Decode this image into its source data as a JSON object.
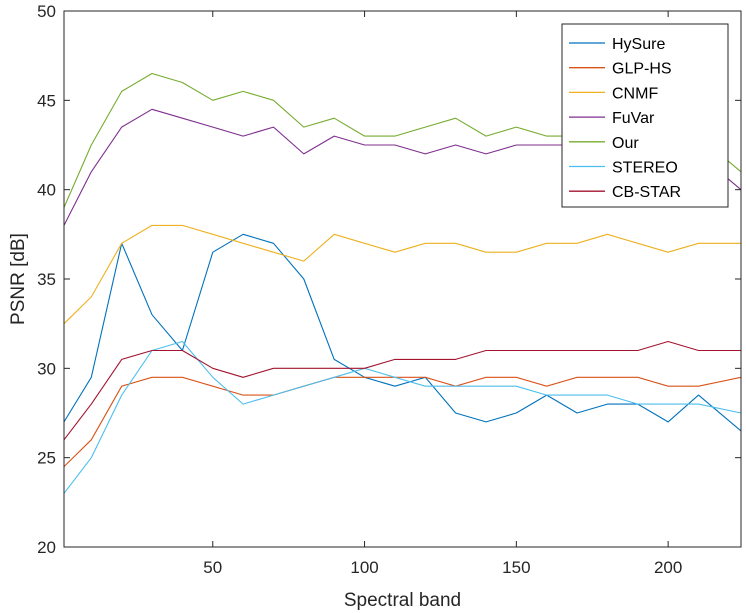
{
  "chart_data": {
    "type": "line",
    "xlabel": "Spectral band",
    "ylabel": "PSNR [dB]",
    "xlim": [
      1,
      224
    ],
    "ylim": [
      20,
      50
    ],
    "xticks": [
      50,
      100,
      150,
      200
    ],
    "yticks": [
      20,
      25,
      30,
      35,
      40,
      45,
      50
    ],
    "legend_position": "top-right",
    "grid": false,
    "x": [
      1,
      10,
      20,
      30,
      40,
      50,
      60,
      70,
      80,
      90,
      100,
      110,
      120,
      130,
      140,
      150,
      160,
      170,
      180,
      190,
      200,
      210,
      224
    ],
    "series": [
      {
        "name": "HySure",
        "color": "#0072BD",
        "values": [
          27.0,
          29.5,
          37.0,
          33.0,
          31.0,
          36.5,
          37.5,
          37.0,
          35.0,
          30.5,
          29.5,
          29.0,
          29.5,
          27.5,
          27.0,
          27.5,
          28.5,
          27.5,
          28.0,
          28.0,
          27.0,
          28.5,
          26.5
        ]
      },
      {
        "name": "GLP-HS",
        "color": "#D95319",
        "values": [
          24.5,
          26.0,
          29.0,
          29.5,
          29.5,
          29.0,
          28.5,
          28.5,
          29.0,
          29.5,
          29.5,
          29.5,
          29.5,
          29.0,
          29.5,
          29.5,
          29.0,
          29.5,
          29.5,
          29.5,
          29.0,
          29.0,
          29.5
        ]
      },
      {
        "name": "CNMF",
        "color": "#EDB120",
        "values": [
          32.5,
          34.0,
          37.0,
          38.0,
          38.0,
          37.5,
          37.0,
          36.5,
          36.0,
          37.5,
          37.0,
          36.5,
          37.0,
          37.0,
          36.5,
          36.5,
          37.0,
          37.0,
          37.5,
          37.0,
          36.5,
          37.0,
          37.0
        ]
      },
      {
        "name": "FuVar",
        "color": "#7E2F8E",
        "values": [
          38.0,
          41.0,
          43.5,
          44.5,
          44.0,
          43.5,
          43.0,
          43.5,
          42.0,
          43.0,
          42.5,
          42.5,
          42.0,
          42.5,
          42.0,
          42.5,
          42.5,
          42.5,
          42.0,
          42.5,
          42.5,
          42.0,
          40.0
        ]
      },
      {
        "name": "Our",
        "color": "#77AC30",
        "values": [
          39.0,
          42.5,
          45.5,
          46.5,
          46.0,
          45.0,
          45.5,
          45.0,
          43.5,
          44.0,
          43.0,
          43.0,
          43.5,
          44.0,
          43.0,
          43.5,
          43.0,
          43.0,
          43.0,
          43.0,
          43.5,
          43.0,
          41.0
        ]
      },
      {
        "name": "STEREO",
        "color": "#4DBEEE",
        "values": [
          23.0,
          25.0,
          28.5,
          31.0,
          31.5,
          29.5,
          28.0,
          28.5,
          29.0,
          29.5,
          30.0,
          29.5,
          29.0,
          29.0,
          29.0,
          29.0,
          28.5,
          28.5,
          28.5,
          28.0,
          28.0,
          28.0,
          27.5
        ]
      },
      {
        "name": "CB-STAR",
        "color": "#A2142F",
        "values": [
          26.0,
          28.0,
          30.5,
          31.0,
          31.0,
          30.0,
          29.5,
          30.0,
          30.0,
          30.0,
          30.0,
          30.5,
          30.5,
          30.5,
          31.0,
          31.0,
          31.0,
          31.0,
          31.0,
          31.0,
          31.5,
          31.0,
          31.0
        ]
      }
    ]
  }
}
